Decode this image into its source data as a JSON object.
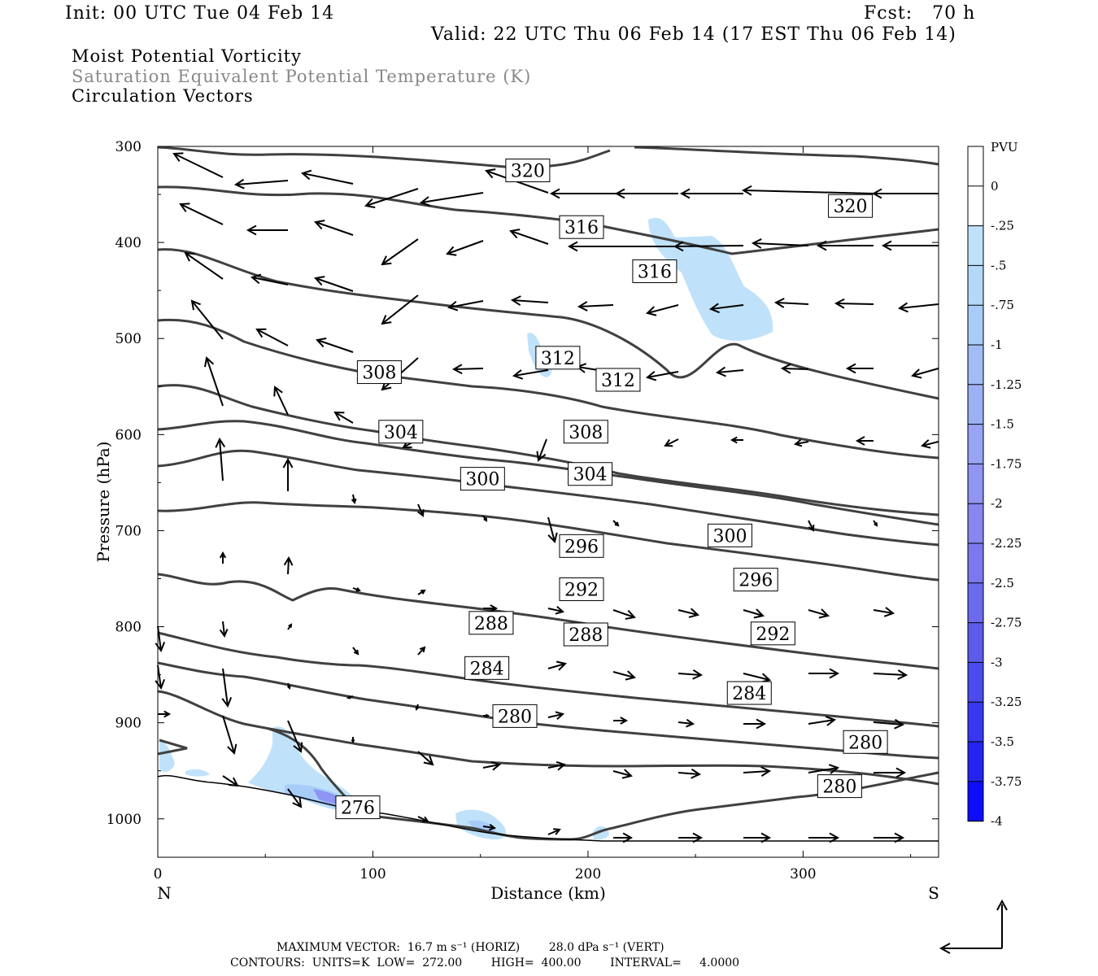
{
  "header": {
    "init": "Init: 00 UTC Tue 04 Feb 14",
    "fcst": "Fcst:   70 h",
    "valid": "Valid: 22 UTC Thu 06 Feb 14 (17 EST Thu 06 Feb 14)",
    "fields": [
      "Moist Potential Vorticity",
      "Saturation Equivalent Potential Temperature (K)",
      "Circulation Vectors"
    ]
  },
  "colorbar": {
    "unit": "PVU",
    "labels": [
      "0",
      "-.25",
      "-.5",
      "-.75",
      "-1",
      "-1.25",
      "-1.5",
      "-1.75",
      "-2",
      "-2.25",
      "-2.5",
      "-2.75",
      "-3",
      "-3.25",
      "-3.5",
      "-3.75",
      "-4"
    ],
    "colors": [
      "#ffffff",
      "#ffffff",
      "#bfe2fa",
      "#b4d8f8",
      "#a8ccf8",
      "#a2bdf6",
      "#9cb0f5",
      "#98a4f4",
      "#9095f2",
      "#8787f0",
      "#7a79ee",
      "#6c6bed",
      "#5c5bec",
      "#4b4bee",
      "#3838f0",
      "#2424f3",
      "#0d0dfb"
    ]
  },
  "footer": {
    "line1": "MAXIMUM VECTOR:  16.7 m s⁻¹ (HORIZ)        28.0 dPa s⁻¹ (VERT)",
    "line2": "CONTOURS:  UNITS=K  LOW=  272.00        HIGH=  400.00        INTERVAL=     4.0000"
  },
  "chart_data": {
    "type": "cross-section",
    "xlabel": "Distance (km)",
    "ylabel": "Pressure (hPa)",
    "xlim": [
      0,
      363
    ],
    "ylim": [
      1040,
      300
    ],
    "xticks": [
      0,
      100,
      200,
      300
    ],
    "yticks": [
      300,
      400,
      500,
      600,
      700,
      800,
      900,
      1000
    ],
    "left_end": "N",
    "right_end": "S",
    "contour_labels": [
      {
        "value": "320",
        "x": 172,
        "p": 325
      },
      {
        "value": "320",
        "x": 322,
        "p": 362
      },
      {
        "value": "316",
        "x": 197,
        "p": 384
      },
      {
        "value": "316",
        "x": 231,
        "p": 430
      },
      {
        "value": "312",
        "x": 186,
        "p": 520
      },
      {
        "value": "312",
        "x": 214,
        "p": 543
      },
      {
        "value": "308",
        "x": 103,
        "p": 535
      },
      {
        "value": "308",
        "x": 199,
        "p": 597
      },
      {
        "value": "304",
        "x": 113,
        "p": 597
      },
      {
        "value": "304",
        "x": 201,
        "p": 641
      },
      {
        "value": "300",
        "x": 151,
        "p": 646
      },
      {
        "value": "300",
        "x": 266,
        "p": 705
      },
      {
        "value": "296",
        "x": 197,
        "p": 716
      },
      {
        "value": "296",
        "x": 278,
        "p": 751
      },
      {
        "value": "292",
        "x": 197,
        "p": 761
      },
      {
        "value": "292",
        "x": 286,
        "p": 807
      },
      {
        "value": "288",
        "x": 155,
        "p": 796
      },
      {
        "value": "288",
        "x": 199,
        "p": 808
      },
      {
        "value": "284",
        "x": 153,
        "p": 843
      },
      {
        "value": "284",
        "x": 275,
        "p": 869
      },
      {
        "value": "280",
        "x": 166,
        "p": 893
      },
      {
        "value": "280",
        "x": 329,
        "p": 920
      },
      {
        "value": "280",
        "x": 317,
        "p": 966
      },
      {
        "value": "276",
        "x": 93,
        "p": 988
      }
    ]
  }
}
